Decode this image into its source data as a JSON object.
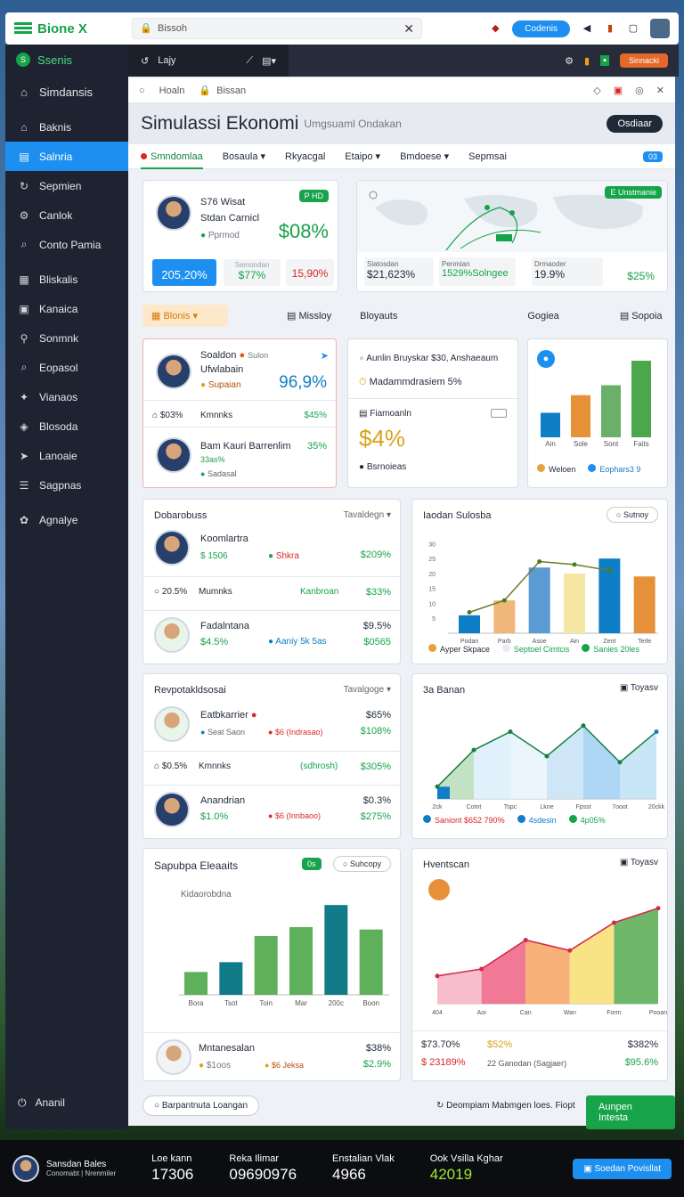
{
  "app": {
    "name": "Bione X",
    "address": "Bissoh",
    "top_button": "Codenis"
  },
  "sidebar": {
    "header": "Ssenis",
    "items": [
      "Simdansis",
      "Baknis",
      "Salnria",
      "Sepmien",
      "Canlok",
      "Conto Pamia",
      "Bliskalis",
      "Kanaica",
      "Sonmnk",
      "Eopasol",
      "Vianaos",
      "Blosoda",
      "Lanoaie",
      "Sagpnas",
      "Agnalye"
    ],
    "bottom": "Ananil"
  },
  "mainbar": {
    "tab": "Lajy",
    "action": "Sinnacki"
  },
  "inner": {
    "home": "Hoaln",
    "search": "Bissan"
  },
  "page": {
    "title": "Simulassi Ekonomi",
    "subtitle": "Umgsuaml Ondakan",
    "button": "Osdiaar"
  },
  "tabs": [
    "Smndomlaa",
    "Bosaula",
    "Rkyacgal",
    "Etaipo",
    "Bmdoese",
    "Sepmsai"
  ],
  "tabs_badge": "03",
  "profile_card": {
    "line1": "S76 Wisat",
    "name": "Stdan Carnicl",
    "status": "Pprmod",
    "badge": "P HD",
    "big": "$08%",
    "stats": [
      "205,20%",
      "$77%",
      "15,90%"
    ],
    "stats_label": "Semondan"
  },
  "map_card": {
    "badge": "E Unstmanie",
    "stats": [
      {
        "label": "Siatosdan",
        "value": "$21,623%"
      },
      {
        "label": "Penmian",
        "value": "1529%Solngee"
      },
      {
        "label": "Drmaoder",
        "value": "19.9%"
      },
      {
        "label": "",
        "value": "$25%"
      }
    ]
  },
  "filter": {
    "dropdown": "Blonis",
    "links": [
      "Missloy",
      "Bloyauts",
      "Gogiea",
      "Sopoia"
    ]
  },
  "card_a": {
    "name": "Soaldon",
    "unit": "Sulon",
    "sub": "Ufwlabain",
    "status": "Supaian",
    "big": "96,9%",
    "row1": {
      "a": "$03%",
      "b": "Kmnnks",
      "c": "$45%"
    },
    "p2": {
      "name": "Bam Kauri Barrenlim",
      "value": "35%",
      "sub": "33as%",
      "status": "Sadasal"
    }
  },
  "card_b": {
    "l1": "Aunlin Bruyskar $30, Anshaeaum",
    "l2": "Madammdrasiem 5%",
    "l3": "Fiamoanln",
    "big": "$4%",
    "l4": "Bsrnoieas"
  },
  "mini_chart": {
    "legend": [
      "Weloen",
      "Eophars3 9"
    ]
  },
  "list1": {
    "title": "Dobarobuss",
    "dropdown": "Tavaldegn",
    "rows": [
      {
        "name": "Koomlartra",
        "a": "$ 1506",
        "b": "Shkra",
        "c": "$209%"
      },
      {
        "name": "20.5%",
        "a": "Mumnks",
        "b": "Kanbroan",
        "c": "$33%"
      },
      {
        "name": "Fadalntana",
        "a": "$4.5%",
        "b": "Aaniy 5k 5as",
        "c": "$9.5%",
        "d": "$0565"
      }
    ]
  },
  "chart1": {
    "title": "Iaodan Sulosba",
    "button": "Sutnoy",
    "legend": [
      "Ayper Skpace",
      "Septoel Cimtcis",
      "Sanies 20les"
    ]
  },
  "list2": {
    "title": "Revpotakldsosai",
    "dropdown": "Tavalgoge",
    "rows": [
      {
        "name": "Eatbkarrier",
        "a": "Seat Saon",
        "b": "$6 (Indrasao)",
        "c": "$65%",
        "d": "$108%"
      },
      {
        "name": "$0.5%",
        "a": "Kmnnks",
        "b": "(sdhrosh)",
        "c": "$305%"
      },
      {
        "name": "Anandrian",
        "a": "$1.0%",
        "b": "$6 (Innbaoo)",
        "c": "$0.3%",
        "d": "$275%"
      }
    ]
  },
  "chart2": {
    "title": "3a Banan",
    "button": "Toyasv",
    "legend": [
      "Saniont $652 790%",
      "4sdesin",
      "4p05%"
    ]
  },
  "chart3": {
    "title": "Sapubpa Eleaaits",
    "pill": "0s",
    "button": "Suhcopy",
    "label": "Kidaorobdna",
    "foot_name": "Mntanesalan",
    "foot_a": "$1oos",
    "foot_b": "$6 Jeksa",
    "foot_c": "$38%",
    "foot_d": "$2.9%"
  },
  "chart4": {
    "title": "Hventscan",
    "button": "Toyasv",
    "stats": [
      "$73.70%",
      "$ 23189%",
      "$52%",
      "22 Ganodan (Sagjaer)",
      "$382%",
      "$95.6%"
    ]
  },
  "footer": {
    "link": "Barpantnuta Loangan",
    "text": "Deompiam Mabmgen loes. Fiopt",
    "button": "Aunpen Intesta"
  },
  "bottombar": {
    "user": "Sansdan Bales",
    "user_sub": "Conomabt | Nrenmiler",
    "cols": [
      {
        "l": "Loe kann",
        "v": "17306"
      },
      {
        "l": "Reka Ilimar",
        "v": "09690976"
      },
      {
        "l": "Enstalian Vlak",
        "v": "4966"
      },
      {
        "l": "Ook Vsilla Kghar",
        "v": "42019"
      }
    ],
    "button": "Soedan Povisllat"
  },
  "chart_data": [
    {
      "type": "bar",
      "categories": [
        "Ain",
        "Sole",
        "Sont",
        "Faits"
      ],
      "values": [
        32,
        55,
        68,
        100
      ],
      "colors": [
        "#0e7fc7",
        "#e69138",
        "#6aaf6a",
        "#4aa84a"
      ]
    },
    {
      "type": "bar",
      "categories": [
        "Podan",
        "Parb",
        "Asoe",
        "Ain",
        "Zent",
        "Terle"
      ],
      "values": [
        6,
        11,
        22,
        20,
        25,
        19
      ],
      "ylim": [
        0,
        31
      ],
      "ticks": [
        5,
        10,
        15,
        20,
        25,
        30
      ],
      "line": [
        7,
        11,
        24,
        23,
        21,
        null
      ]
    },
    {
      "type": "area",
      "categories": [
        "2ck",
        "Cotnt",
        "Tspc",
        "Lkne",
        "Fpsst",
        "7ooot",
        "20ckk"
      ],
      "values": [
        2,
        8,
        11,
        7,
        12,
        6,
        11
      ],
      "ylim": [
        0,
        14
      ]
    },
    {
      "type": "bar",
      "categories": [
        "Bora",
        "Tsot",
        "Toin",
        "Mar",
        "200c",
        "Boon"
      ],
      "values": [
        28,
        40,
        72,
        83,
        110,
        80
      ],
      "ylim": [
        0,
        120
      ]
    },
    {
      "type": "area",
      "categories": [
        "404",
        "Aoi",
        "Can",
        "Wan",
        "Form",
        "Pooan"
      ],
      "values": [
        48,
        60,
        110,
        92,
        140,
        165
      ],
      "ylim": [
        0,
        200
      ]
    }
  ]
}
